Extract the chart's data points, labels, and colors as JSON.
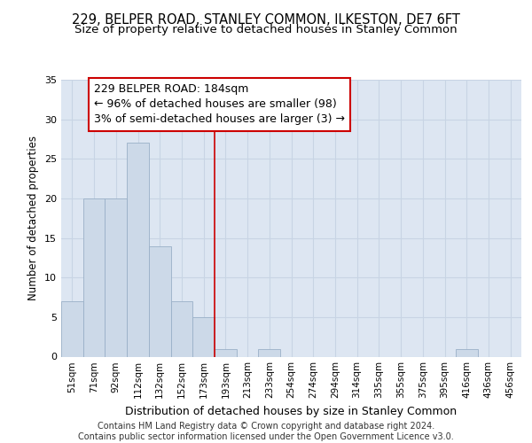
{
  "title": "229, BELPER ROAD, STANLEY COMMON, ILKESTON, DE7 6FT",
  "subtitle": "Size of property relative to detached houses in Stanley Common",
  "xlabel": "Distribution of detached houses by size in Stanley Common",
  "ylabel": "Number of detached properties",
  "bin_labels": [
    "51sqm",
    "71sqm",
    "92sqm",
    "112sqm",
    "132sqm",
    "152sqm",
    "173sqm",
    "193sqm",
    "213sqm",
    "233sqm",
    "254sqm",
    "274sqm",
    "294sqm",
    "314sqm",
    "335sqm",
    "355sqm",
    "375sqm",
    "395sqm",
    "416sqm",
    "436sqm",
    "456sqm"
  ],
  "bar_values": [
    7,
    20,
    20,
    27,
    14,
    7,
    5,
    1,
    0,
    1,
    0,
    0,
    0,
    0,
    0,
    0,
    0,
    0,
    1,
    0,
    0
  ],
  "bar_color": "#ccd9e8",
  "bar_edge_color": "#9ab0c8",
  "grid_color": "#c8d4e4",
  "background_color": "#dde6f2",
  "vline_color": "#cc0000",
  "vline_x_index": 7,
  "annotation_line1": "229 BELPER ROAD: 184sqm",
  "annotation_line2": "← 96% of detached houses are smaller (98)",
  "annotation_line3": "3% of semi-detached houses are larger (3) →",
  "ylim": [
    0,
    35
  ],
  "yticks": [
    0,
    5,
    10,
    15,
    20,
    25,
    30,
    35
  ],
  "footer_text": "Contains HM Land Registry data © Crown copyright and database right 2024.\nContains public sector information licensed under the Open Government Licence v3.0.",
  "title_fontsize": 10.5,
  "subtitle_fontsize": 9.5,
  "tick_fontsize": 7.5,
  "ylabel_fontsize": 8.5,
  "xlabel_fontsize": 9,
  "annotation_fontsize": 9,
  "footer_fontsize": 7
}
